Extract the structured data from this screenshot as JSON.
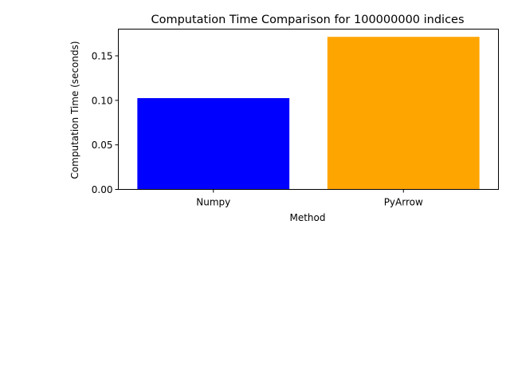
{
  "chart_data": {
    "type": "bar",
    "title": "Computation Time Comparison for 100000000 indices",
    "xlabel": "Method",
    "ylabel": "Computation Time (seconds)",
    "categories": [
      "Numpy",
      "PyArrow"
    ],
    "values": [
      0.1025,
      0.1713
    ],
    "colors": [
      "#0000ff",
      "#ffa500"
    ],
    "ylim": [
      0,
      0.18
    ],
    "yticks": [
      0.0,
      0.05,
      0.1,
      0.15
    ],
    "ytick_labels": [
      "0.00",
      "0.05",
      "0.10",
      "0.15"
    ],
    "grid": false,
    "legend": "none"
  }
}
